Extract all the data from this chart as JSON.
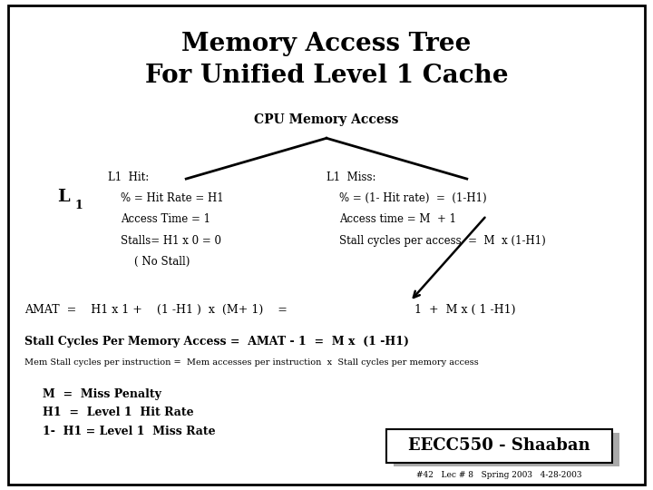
{
  "title_line1": "Memory Access Tree",
  "title_line2": "For Unified Level 1 Cache",
  "bg_color": "#ffffff",
  "border_color": "#000000",
  "cpu_label": "CPU Memory Access",
  "hit_title": "L1  Hit:",
  "hit_line1": "% = Hit Rate = H1",
  "hit_line2": "Access Time = 1",
  "hit_line3": "Stalls= H1 x 0 = 0",
  "hit_line4": "( No Stall)",
  "miss_title": "L1  Miss:",
  "miss_line1": "% = (1- Hit rate)  =  (1-H1)",
  "miss_line2": "Access time = M  + 1",
  "miss_line3": "Stall cycles per access  =  M  x (1-H1)",
  "amat_left": "AMAT  =    H1 x 1 +    (1 -H1 )  x  (M+ 1)    =",
  "amat_right": "1  +  M x ( 1 -H1)",
  "stall_bold": "Stall Cycles Per Memory Access =  AMAT - 1  =  M x  (1 -H1)",
  "stall_small": "Mem Stall cycles per instruction =  Mem accesses per instruction  x  Stall cycles per memory access",
  "legend1": "M  =  Miss Penalty",
  "legend2": "H1  =  Level 1  Hit Rate",
  "legend3": "1-  H1 = Level 1  Miss Rate",
  "badge_text": "EECC550 - Shaaban",
  "badge_sub": "#42   Lec # 8   Spring 2003   4-28-2003"
}
